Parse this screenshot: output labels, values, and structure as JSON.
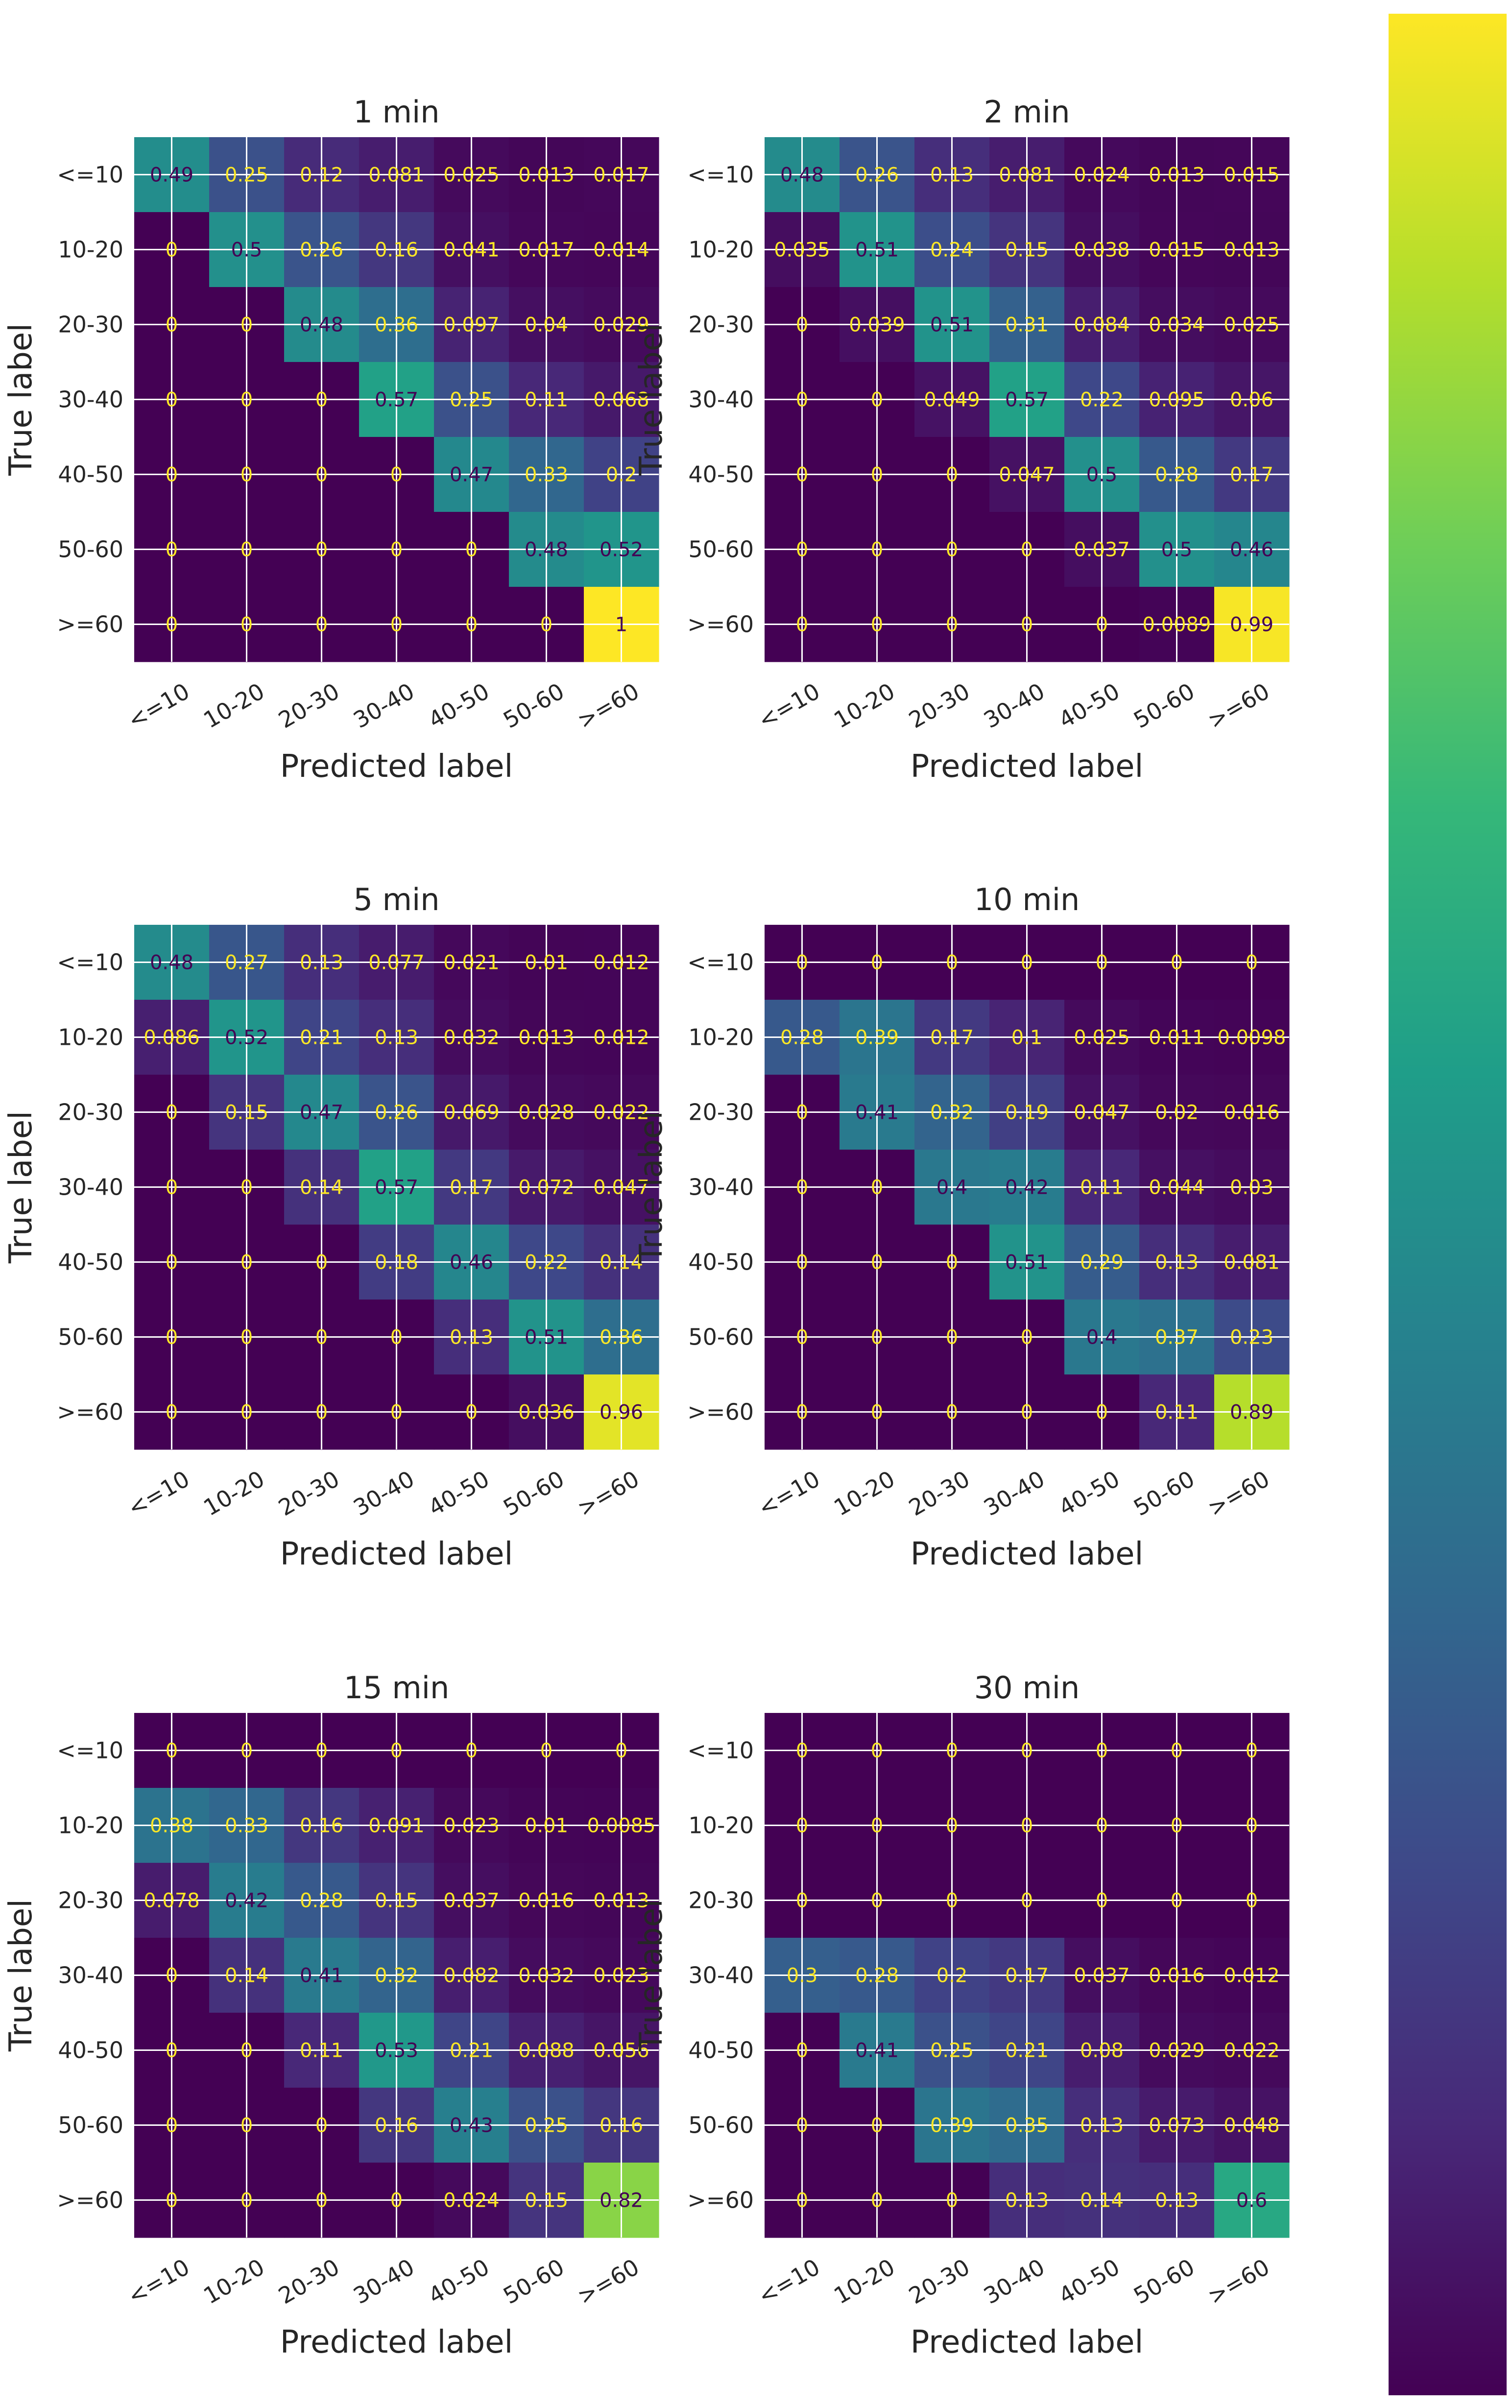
{
  "colors": {
    "grid": "#ffffff",
    "text_on_dark": "#fde725",
    "text_on_light": "#440154",
    "colormap": [
      "#440154",
      "#482878",
      "#3e4989",
      "#31688e",
      "#26828e",
      "#1f9e89",
      "#35b779",
      "#6ece58",
      "#b5de2b",
      "#fde725"
    ]
  },
  "chart_data": [
    {
      "type": "heatmap",
      "title": "1 min",
      "xlabel": "Predicted label",
      "ylabel": "True label",
      "categories": [
        "<=10",
        "10-20",
        "20-30",
        "30-40",
        "40-50",
        "50-60",
        ">=60"
      ],
      "values": [
        [
          "0.49",
          "0.25",
          "0.12",
          "0.081",
          "0.025",
          "0.013",
          "0.017"
        ],
        [
          "0",
          "0.5",
          "0.26",
          "0.16",
          "0.041",
          "0.017",
          "0.014"
        ],
        [
          "0",
          "0",
          "0.48",
          "0.36",
          "0.097",
          "0.04",
          "0.029"
        ],
        [
          "0",
          "0",
          "0",
          "0.57",
          "0.25",
          "0.11",
          "0.068"
        ],
        [
          "0",
          "0",
          "0",
          "0",
          "0.47",
          "0.33",
          "0.2"
        ],
        [
          "0",
          "0",
          "0",
          "0",
          "0",
          "0.48",
          "0.52"
        ],
        [
          "0",
          "0",
          "0",
          "0",
          "0",
          "0",
          "1"
        ]
      ]
    },
    {
      "type": "heatmap",
      "title": "2 min",
      "xlabel": "Predicted label",
      "ylabel": "True label",
      "categories": [
        "<=10",
        "10-20",
        "20-30",
        "30-40",
        "40-50",
        "50-60",
        ">=60"
      ],
      "values": [
        [
          "0.48",
          "0.26",
          "0.13",
          "0.081",
          "0.024",
          "0.013",
          "0.015"
        ],
        [
          "0.035",
          "0.51",
          "0.24",
          "0.15",
          "0.038",
          "0.015",
          "0.013"
        ],
        [
          "0",
          "0.039",
          "0.51",
          "0.31",
          "0.084",
          "0.034",
          "0.025"
        ],
        [
          "0",
          "0",
          "0.049",
          "0.57",
          "0.22",
          "0.095",
          "0.06"
        ],
        [
          "0",
          "0",
          "0",
          "0.047",
          "0.5",
          "0.28",
          "0.17"
        ],
        [
          "0",
          "0",
          "0",
          "0",
          "0.037",
          "0.5",
          "0.46"
        ],
        [
          "0",
          "0",
          "0",
          "0",
          "0",
          "0.0089",
          "0.99"
        ]
      ]
    },
    {
      "type": "heatmap",
      "title": "5 min",
      "xlabel": "Predicted label",
      "ylabel": "True label",
      "categories": [
        "<=10",
        "10-20",
        "20-30",
        "30-40",
        "40-50",
        "50-60",
        ">=60"
      ],
      "values": [
        [
          "0.48",
          "0.27",
          "0.13",
          "0.077",
          "0.021",
          "0.01",
          "0.012"
        ],
        [
          "0.086",
          "0.52",
          "0.21",
          "0.13",
          "0.032",
          "0.013",
          "0.012"
        ],
        [
          "0",
          "0.15",
          "0.47",
          "0.26",
          "0.069",
          "0.028",
          "0.022"
        ],
        [
          "0",
          "0",
          "0.14",
          "0.57",
          "0.17",
          "0.072",
          "0.047"
        ],
        [
          "0",
          "0",
          "0",
          "0.18",
          "0.46",
          "0.22",
          "0.14"
        ],
        [
          "0",
          "0",
          "0",
          "0",
          "0.13",
          "0.51",
          "0.36"
        ],
        [
          "0",
          "0",
          "0",
          "0",
          "0",
          "0.036",
          "0.96"
        ]
      ]
    },
    {
      "type": "heatmap",
      "title": "10 min",
      "xlabel": "Predicted label",
      "ylabel": "True label",
      "categories": [
        "<=10",
        "10-20",
        "20-30",
        "30-40",
        "40-50",
        "50-60",
        ">=60"
      ],
      "values": [
        [
          "0",
          "0",
          "0",
          "0",
          "0",
          "0",
          "0"
        ],
        [
          "0.28",
          "0.39",
          "0.17",
          "0.1",
          "0.025",
          "0.011",
          "0.0098"
        ],
        [
          "0",
          "0.41",
          "0.32",
          "0.19",
          "0.047",
          "0.02",
          "0.016"
        ],
        [
          "0",
          "0",
          "0.4",
          "0.42",
          "0.11",
          "0.044",
          "0.03"
        ],
        [
          "0",
          "0",
          "0",
          "0.51",
          "0.29",
          "0.13",
          "0.081"
        ],
        [
          "0",
          "0",
          "0",
          "0",
          "0.4",
          "0.37",
          "0.23"
        ],
        [
          "0",
          "0",
          "0",
          "0",
          "0",
          "0.11",
          "0.89"
        ]
      ]
    },
    {
      "type": "heatmap",
      "title": "15 min",
      "xlabel": "Predicted label",
      "ylabel": "True label",
      "categories": [
        "<=10",
        "10-20",
        "20-30",
        "30-40",
        "40-50",
        "50-60",
        ">=60"
      ],
      "values": [
        [
          "0",
          "0",
          "0",
          "0",
          "0",
          "0",
          "0"
        ],
        [
          "0.38",
          "0.33",
          "0.16",
          "0.091",
          "0.023",
          "0.01",
          "0.0085"
        ],
        [
          "0.078",
          "0.42",
          "0.28",
          "0.15",
          "0.037",
          "0.016",
          "0.013"
        ],
        [
          "0",
          "0.14",
          "0.41",
          "0.32",
          "0.082",
          "0.032",
          "0.023"
        ],
        [
          "0",
          "0",
          "0.11",
          "0.53",
          "0.21",
          "0.088",
          "0.056"
        ],
        [
          "0",
          "0",
          "0",
          "0.16",
          "0.43",
          "0.25",
          "0.16"
        ],
        [
          "0",
          "0",
          "0",
          "0",
          "0.024",
          "0.15",
          "0.82"
        ]
      ]
    },
    {
      "type": "heatmap",
      "title": "30 min",
      "xlabel": "Predicted label",
      "ylabel": "True label",
      "categories": [
        "<=10",
        "10-20",
        "20-30",
        "30-40",
        "40-50",
        "50-60",
        ">=60"
      ],
      "values": [
        [
          "0",
          "0",
          "0",
          "0",
          "0",
          "0",
          "0"
        ],
        [
          "0",
          "0",
          "0",
          "0",
          "0",
          "0",
          "0"
        ],
        [
          "0",
          "0",
          "0",
          "0",
          "0",
          "0",
          "0"
        ],
        [
          "0.3",
          "0.28",
          "0.2",
          "0.17",
          "0.037",
          "0.016",
          "0.012"
        ],
        [
          "0",
          "0.41",
          "0.25",
          "0.21",
          "0.08",
          "0.029",
          "0.022"
        ],
        [
          "0",
          "0",
          "0.39",
          "0.35",
          "0.13",
          "0.073",
          "0.048"
        ],
        [
          "0",
          "0",
          "0",
          "0.13",
          "0.14",
          "0.13",
          "0.6"
        ]
      ]
    }
  ],
  "colorbar": {
    "min": 0,
    "max": 1,
    "ticks_shown": false
  }
}
